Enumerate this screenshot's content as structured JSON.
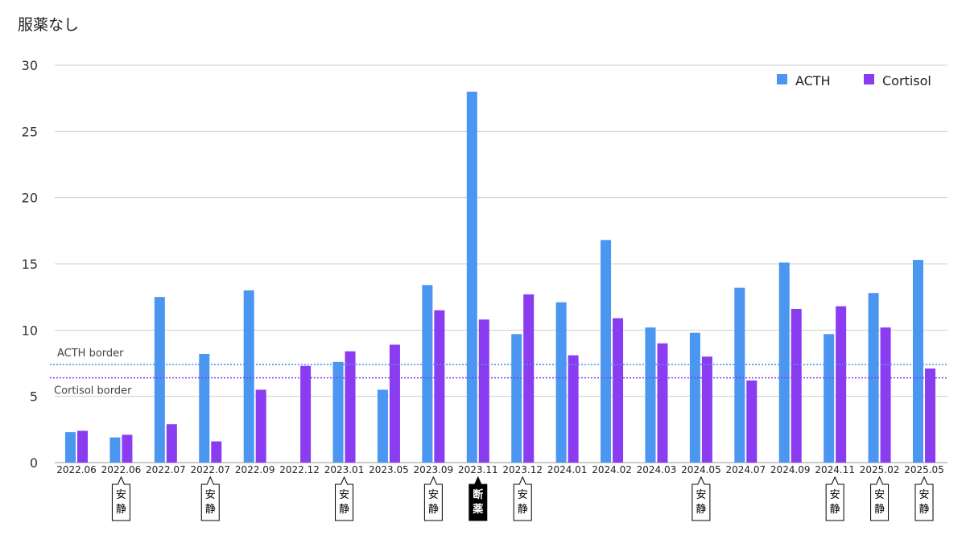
{
  "chart_data": {
    "type": "bar",
    "title": "服薬なし",
    "categories": [
      "2022.06",
      "2022.06",
      "2022.07",
      "2022.07",
      "2022.09",
      "2022.12",
      "2023.01",
      "2023.05",
      "2023.09",
      "2023.11",
      "2023.12",
      "2024.01",
      "2024.02",
      "2024.03",
      "2024.05",
      "2024.07",
      "2024.09",
      "2024.11",
      "2025.02",
      "2025.05"
    ],
    "series": [
      {
        "name": "ACTH",
        "color": "#4a96f0",
        "values": [
          2.3,
          1.9,
          12.5,
          8.2,
          13.0,
          null,
          7.6,
          5.5,
          13.4,
          28.0,
          9.7,
          12.1,
          16.8,
          10.2,
          9.8,
          13.2,
          15.1,
          9.7,
          12.8,
          15.3
        ]
      },
      {
        "name": "Cortisol",
        "color": "#8a3cf0",
        "values": [
          2.4,
          2.1,
          2.9,
          1.6,
          5.5,
          7.3,
          8.4,
          8.9,
          11.5,
          10.8,
          12.7,
          8.1,
          10.9,
          9.0,
          8.0,
          6.2,
          11.6,
          11.8,
          10.2,
          7.1
        ]
      }
    ],
    "ylim": [
      0,
      30
    ],
    "yticks": [
      0,
      5,
      10,
      15,
      20,
      25,
      30
    ],
    "grid": true,
    "legend": "top-right",
    "reference_lines": [
      {
        "label": "ACTH border",
        "value": 7.4,
        "color": "#4a96f0",
        "label_position": "above"
      },
      {
        "label": "Cortisol border",
        "value": 6.4,
        "color": "#8a3cf0",
        "label_position": "below"
      }
    ],
    "annotations": [
      {
        "category_index": 1,
        "text": "安静",
        "style": "white"
      },
      {
        "category_index": 3,
        "text": "安静",
        "style": "white"
      },
      {
        "category_index": 6,
        "text": "安静",
        "style": "white"
      },
      {
        "category_index": 8,
        "text": "安静",
        "style": "white"
      },
      {
        "category_index": 9,
        "text": "断薬",
        "style": "black"
      },
      {
        "category_index": 10,
        "text": "安静",
        "style": "white"
      },
      {
        "category_index": 14,
        "text": "安静",
        "style": "white"
      },
      {
        "category_index": 17,
        "text": "安静",
        "style": "white"
      },
      {
        "category_index": 18,
        "text": "安静",
        "style": "white"
      },
      {
        "category_index": 19,
        "text": "安静",
        "style": "white"
      }
    ]
  }
}
